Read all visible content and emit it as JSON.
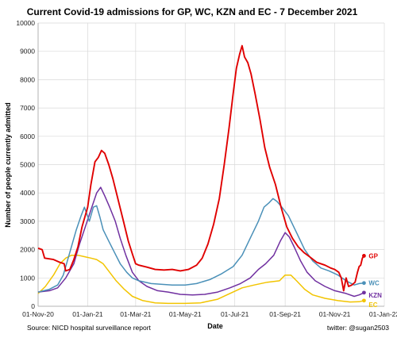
{
  "chart_data": {
    "type": "line",
    "title": "Current Covid-19 admissions for GP, WC, KZN and EC - 7 December 2021",
    "xlabel": "Date",
    "ylabel": "Number of people currently admitted",
    "ylim": [
      0,
      10000
    ],
    "yticks": [
      0,
      1000,
      2000,
      3000,
      4000,
      5000,
      6000,
      7000,
      8000,
      9000,
      10000
    ],
    "xlim": [
      "2020-11-01",
      "2022-01-01"
    ],
    "xticks": [
      "2020-11-01",
      "2021-01-01",
      "2021-03-01",
      "2021-05-01",
      "2021-07-01",
      "2021-09-01",
      "2021-11-01",
      "2022-01-01"
    ],
    "xtick_labels": [
      "01-Nov-20",
      "01-Jan-21",
      "01-Mar-21",
      "01-May-21",
      "01-Jul-21",
      "01-Sep-21",
      "01-Nov-21",
      "01-Jan-22"
    ],
    "grid": true,
    "legend": "end-of-line labels",
    "series": [
      {
        "name": "GP",
        "color": "#e00000",
        "points": [
          [
            "2020-11-01",
            2050
          ],
          [
            "2020-11-06",
            2000
          ],
          [
            "2020-11-09",
            1700
          ],
          [
            "2020-11-20",
            1650
          ],
          [
            "2020-11-28",
            1550
          ],
          [
            "2020-12-03",
            1500
          ],
          [
            "2020-12-05",
            1250
          ],
          [
            "2020-12-10",
            1300
          ],
          [
            "2020-12-15",
            1650
          ],
          [
            "2020-12-20",
            2100
          ],
          [
            "2020-12-25",
            2800
          ],
          [
            "2021-01-01",
            3500
          ],
          [
            "2021-01-05",
            4300
          ],
          [
            "2021-01-10",
            5100
          ],
          [
            "2021-01-14",
            5250
          ],
          [
            "2021-01-18",
            5500
          ],
          [
            "2021-01-22",
            5400
          ],
          [
            "2021-01-27",
            5000
          ],
          [
            "2021-02-01",
            4500
          ],
          [
            "2021-02-08",
            3700
          ],
          [
            "2021-02-14",
            3000
          ],
          [
            "2021-02-20",
            2300
          ],
          [
            "2021-02-25",
            1850
          ],
          [
            "2021-03-01",
            1500
          ],
          [
            "2021-03-05",
            1450
          ],
          [
            "2021-03-15",
            1380
          ],
          [
            "2021-03-25",
            1300
          ],
          [
            "2021-04-05",
            1280
          ],
          [
            "2021-04-15",
            1300
          ],
          [
            "2021-04-25",
            1250
          ],
          [
            "2021-05-05",
            1300
          ],
          [
            "2021-05-15",
            1450
          ],
          [
            "2021-05-22",
            1700
          ],
          [
            "2021-05-29",
            2200
          ],
          [
            "2021-06-05",
            2900
          ],
          [
            "2021-06-12",
            3800
          ],
          [
            "2021-06-18",
            5000
          ],
          [
            "2021-06-24",
            6300
          ],
          [
            "2021-06-29",
            7500
          ],
          [
            "2021-07-03",
            8400
          ],
          [
            "2021-07-07",
            8900
          ],
          [
            "2021-07-10",
            9200
          ],
          [
            "2021-07-13",
            8800
          ],
          [
            "2021-07-17",
            8600
          ],
          [
            "2021-07-21",
            8200
          ],
          [
            "2021-07-26",
            7500
          ],
          [
            "2021-08-01",
            6600
          ],
          [
            "2021-08-07",
            5600
          ],
          [
            "2021-08-13",
            4900
          ],
          [
            "2021-08-20",
            4300
          ],
          [
            "2021-08-27",
            3500
          ],
          [
            "2021-09-03",
            2800
          ],
          [
            "2021-09-10",
            2400
          ],
          [
            "2021-09-17",
            2100
          ],
          [
            "2021-09-24",
            1900
          ],
          [
            "2021-10-01",
            1750
          ],
          [
            "2021-10-10",
            1550
          ],
          [
            "2021-10-20",
            1450
          ],
          [
            "2021-10-27",
            1350
          ],
          [
            "2021-11-01",
            1300
          ],
          [
            "2021-11-06",
            1200
          ],
          [
            "2021-11-09",
            1000
          ],
          [
            "2021-11-12",
            550
          ],
          [
            "2021-11-15",
            1000
          ],
          [
            "2021-11-18",
            700
          ],
          [
            "2021-11-22",
            750
          ],
          [
            "2021-11-26",
            850
          ],
          [
            "2021-11-29",
            1200
          ],
          [
            "2021-12-01",
            1400
          ],
          [
            "2021-12-03",
            1450
          ],
          [
            "2021-12-05",
            1700
          ],
          [
            "2021-12-07",
            1780
          ]
        ]
      },
      {
        "name": "WC",
        "color": "#4a90b8",
        "points": [
          [
            "2020-11-01",
            500
          ],
          [
            "2020-11-15",
            600
          ],
          [
            "2020-11-25",
            750
          ],
          [
            "2020-12-02",
            1100
          ],
          [
            "2020-12-10",
            1900
          ],
          [
            "2020-12-18",
            2700
          ],
          [
            "2020-12-24",
            3200
          ],
          [
            "2020-12-28",
            3500
          ],
          [
            "2021-01-03",
            3000
          ],
          [
            "2021-01-08",
            3500
          ],
          [
            "2021-01-12",
            3550
          ],
          [
            "2021-01-16",
            3150
          ],
          [
            "2021-01-20",
            2700
          ],
          [
            "2021-01-27",
            2300
          ],
          [
            "2021-02-03",
            1900
          ],
          [
            "2021-02-10",
            1500
          ],
          [
            "2021-02-18",
            1200
          ],
          [
            "2021-02-25",
            1000
          ],
          [
            "2021-03-05",
            900
          ],
          [
            "2021-03-20",
            800
          ],
          [
            "2021-04-01",
            780
          ],
          [
            "2021-04-15",
            750
          ],
          [
            "2021-05-01",
            750
          ],
          [
            "2021-05-15",
            800
          ],
          [
            "2021-06-01",
            950
          ],
          [
            "2021-06-15",
            1150
          ],
          [
            "2021-06-29",
            1400
          ],
          [
            "2021-07-10",
            1800
          ],
          [
            "2021-07-20",
            2400
          ],
          [
            "2021-07-30",
            3000
          ],
          [
            "2021-08-06",
            3500
          ],
          [
            "2021-08-12",
            3650
          ],
          [
            "2021-08-17",
            3800
          ],
          [
            "2021-08-22",
            3700
          ],
          [
            "2021-08-28",
            3500
          ],
          [
            "2021-09-05",
            3200
          ],
          [
            "2021-09-15",
            2600
          ],
          [
            "2021-09-25",
            2000
          ],
          [
            "2021-10-05",
            1600
          ],
          [
            "2021-10-15",
            1350
          ],
          [
            "2021-10-25",
            1250
          ],
          [
            "2021-11-05",
            1100
          ],
          [
            "2021-11-15",
            900
          ],
          [
            "2021-11-25",
            750
          ],
          [
            "2021-12-01",
            800
          ],
          [
            "2021-12-07",
            820
          ]
        ]
      },
      {
        "name": "KZN",
        "color": "#7030a0",
        "points": [
          [
            "2020-11-01",
            500
          ],
          [
            "2020-11-15",
            550
          ],
          [
            "2020-11-25",
            650
          ],
          [
            "2020-12-05",
            1000
          ],
          [
            "2020-12-15",
            1500
          ],
          [
            "2020-12-22",
            2200
          ],
          [
            "2020-12-29",
            2800
          ],
          [
            "2021-01-05",
            3400
          ],
          [
            "2021-01-12",
            4000
          ],
          [
            "2021-01-17",
            4200
          ],
          [
            "2021-01-22",
            3900
          ],
          [
            "2021-01-28",
            3500
          ],
          [
            "2021-02-04",
            3000
          ],
          [
            "2021-02-10",
            2400
          ],
          [
            "2021-02-17",
            1800
          ],
          [
            "2021-02-25",
            1200
          ],
          [
            "2021-03-05",
            900
          ],
          [
            "2021-03-15",
            700
          ],
          [
            "2021-03-28",
            550
          ],
          [
            "2021-04-10",
            500
          ],
          [
            "2021-04-25",
            420
          ],
          [
            "2021-05-10",
            400
          ],
          [
            "2021-05-25",
            420
          ],
          [
            "2021-06-10",
            500
          ],
          [
            "2021-06-25",
            650
          ],
          [
            "2021-07-08",
            800
          ],
          [
            "2021-07-20",
            1000
          ],
          [
            "2021-07-30",
            1300
          ],
          [
            "2021-08-08",
            1500
          ],
          [
            "2021-08-18",
            1800
          ],
          [
            "2021-08-26",
            2300
          ],
          [
            "2021-09-01",
            2600
          ],
          [
            "2021-09-06",
            2450
          ],
          [
            "2021-09-12",
            2100
          ],
          [
            "2021-09-20",
            1600
          ],
          [
            "2021-09-28",
            1200
          ],
          [
            "2021-10-08",
            900
          ],
          [
            "2021-10-20",
            700
          ],
          [
            "2021-11-01",
            550
          ],
          [
            "2021-11-15",
            450
          ],
          [
            "2021-11-25",
            350
          ],
          [
            "2021-12-01",
            400
          ],
          [
            "2021-12-07",
            480
          ]
        ]
      },
      {
        "name": "EC",
        "color": "#f2c400",
        "points": [
          [
            "2020-11-01",
            450
          ],
          [
            "2020-11-10",
            700
          ],
          [
            "2020-11-20",
            1100
          ],
          [
            "2020-11-28",
            1500
          ],
          [
            "2020-12-05",
            1700
          ],
          [
            "2020-12-12",
            1800
          ],
          [
            "2020-12-20",
            1800
          ],
          [
            "2020-12-28",
            1750
          ],
          [
            "2021-01-05",
            1700
          ],
          [
            "2021-01-12",
            1650
          ],
          [
            "2021-01-20",
            1500
          ],
          [
            "2021-01-28",
            1200
          ],
          [
            "2021-02-05",
            900
          ],
          [
            "2021-02-15",
            600
          ],
          [
            "2021-02-25",
            350
          ],
          [
            "2021-03-10",
            200
          ],
          [
            "2021-03-25",
            120
          ],
          [
            "2021-04-10",
            100
          ],
          [
            "2021-05-01",
            100
          ],
          [
            "2021-05-20",
            120
          ],
          [
            "2021-06-10",
            250
          ],
          [
            "2021-06-25",
            450
          ],
          [
            "2021-07-10",
            650
          ],
          [
            "2021-07-25",
            750
          ],
          [
            "2021-08-10",
            850
          ],
          [
            "2021-08-25",
            900
          ],
          [
            "2021-09-01",
            1100
          ],
          [
            "2021-09-08",
            1100
          ],
          [
            "2021-09-15",
            900
          ],
          [
            "2021-09-25",
            600
          ],
          [
            "2021-10-05",
            400
          ],
          [
            "2021-10-20",
            280
          ],
          [
            "2021-11-05",
            200
          ],
          [
            "2021-11-20",
            150
          ],
          [
            "2021-12-01",
            160
          ],
          [
            "2021-12-07",
            200
          ]
        ]
      }
    ],
    "source": "Source: NICD hospital surveillance report",
    "credit": "twitter: @sugan2503"
  }
}
